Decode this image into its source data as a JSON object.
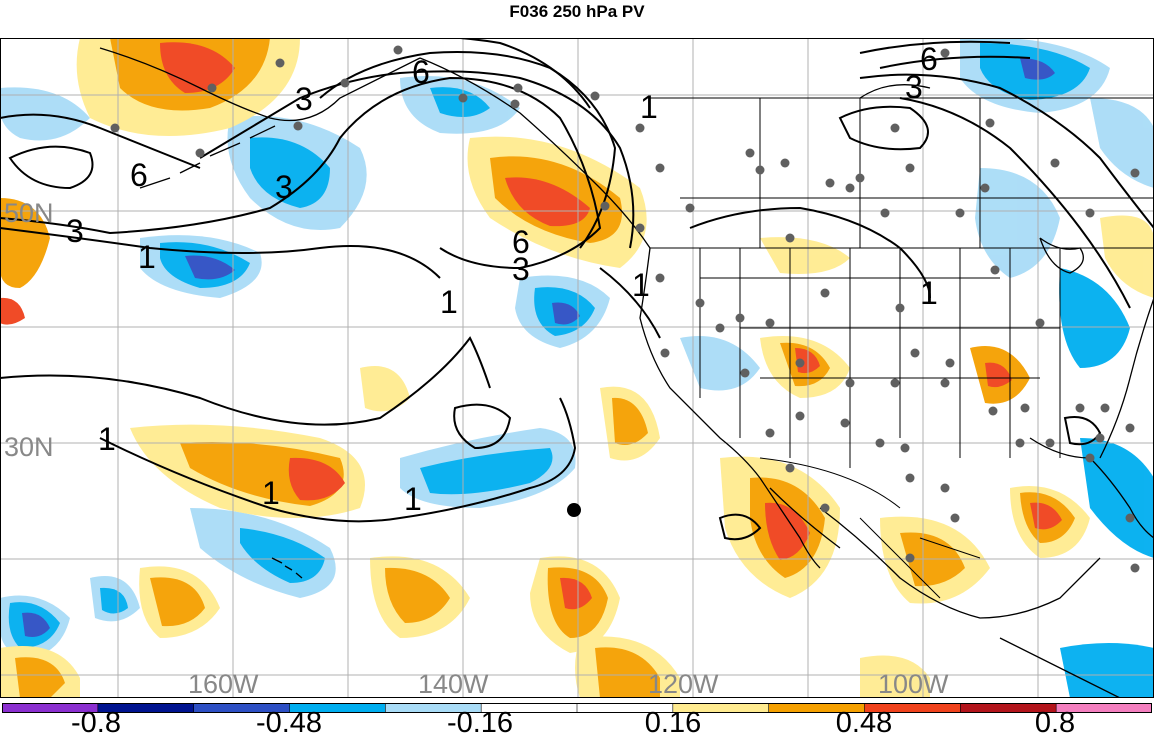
{
  "title": "F036 250 hPa PV",
  "lat_labels": [
    "50N",
    "30N"
  ],
  "lon_labels": [
    "160W",
    "140W",
    "120W",
    "100W"
  ],
  "contour_labels": [
    "6",
    "3",
    "6",
    "3",
    "3",
    "1",
    "1",
    "6",
    "3",
    "1",
    "1",
    "1",
    "1",
    "1",
    "6",
    "3",
    "1"
  ],
  "colorbar": {
    "colors": [
      "#8b2fd0",
      "#00138f",
      "#2d4fc4",
      "#00aef0",
      "#a9dcf7",
      "#ffffff",
      "#ffffff",
      "#ffeb90",
      "#f5a000",
      "#f0421c",
      "#b3141b",
      "#f47fbf"
    ],
    "labels": [
      "-0.8",
      "-0.48",
      "-0.16",
      "0.16",
      "0.48",
      "0.8"
    ]
  },
  "colors": {
    "land_outline": "#000000",
    "grid": "#b0b0b0",
    "station": "#606060",
    "contour": "#000000",
    "lat_lon_label": "#888888"
  }
}
